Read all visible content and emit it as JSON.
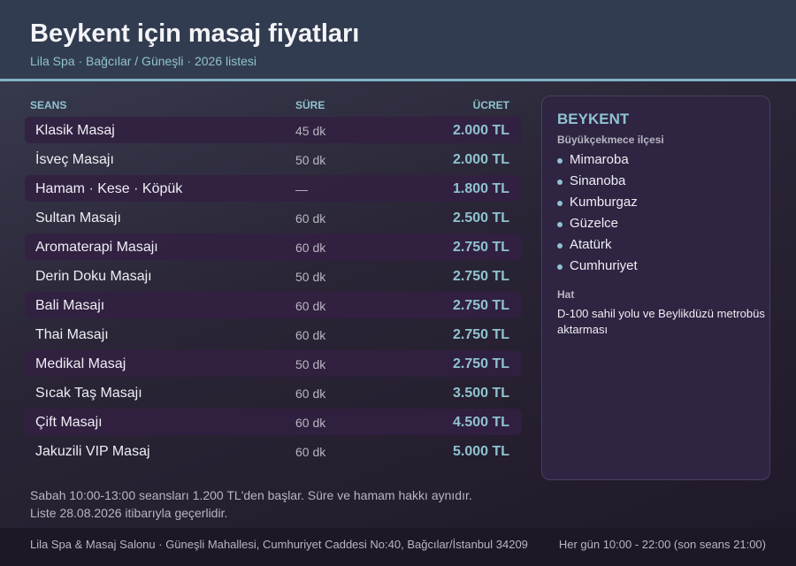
{
  "header": {
    "title": "Beykent için masaj fiyatları",
    "subtitle": "Lila Spa · Bağcılar / Güneşli · 2026 listesi"
  },
  "table": {
    "columns": [
      "SEANS",
      "SÜRE",
      "ÜCRET"
    ],
    "rows": [
      [
        "Klasik Masaj",
        "45 dk",
        "2.000 TL"
      ],
      [
        "İsveç Masajı",
        "50 dk",
        "2.000 TL"
      ],
      [
        "Hamam · Kese · Köpük",
        "—",
        "1.800 TL"
      ],
      [
        "Sultan Masajı",
        "60 dk",
        "2.500 TL"
      ],
      [
        "Aromaterapi Masajı",
        "60 dk",
        "2.750 TL"
      ],
      [
        "Derin Doku Masajı",
        "50 dk",
        "2.750 TL"
      ],
      [
        "Bali Masajı",
        "60 dk",
        "2.750 TL"
      ],
      [
        "Thai Masajı",
        "60 dk",
        "2.750 TL"
      ],
      [
        "Medikal Masaj",
        "50 dk",
        "2.750 TL"
      ],
      [
        "Sıcak Taş Masajı",
        "60 dk",
        "3.500 TL"
      ],
      [
        "Çift Masajı",
        "60 dk",
        "4.500 TL"
      ],
      [
        "Jakuzili VIP Masaj",
        "60 dk",
        "5.000 TL"
      ]
    ]
  },
  "panel": {
    "title": "BEYKENT",
    "subtitle": "Büyükçekmece ilçesi",
    "neighborhoods": [
      "Mimaroba",
      "Sinanoba",
      "Kumburgaz",
      "Güzelce",
      "Atatürk",
      "Cumhuriyet"
    ],
    "line_label": "Hat",
    "line_text": "D-100 sahil yolu ve Beylikdüzü metrobüs aktarması"
  },
  "notes": [
    "Sabah 10:00-13:00 seansları 1.200 TL'den başlar. Süre ve hamam hakkı aynıdır.",
    "Liste 28.08.2026 itibarıyla geçerlidir."
  ],
  "footer": {
    "address": "Lila Spa & Masaj Salonu · Güneşli Mahallesi, Cumhuriyet Caddesi No:40, Bağcılar/İstanbul 34209",
    "hours": "Her gün 10:00 - 22:00 (son seans 21:00)"
  }
}
